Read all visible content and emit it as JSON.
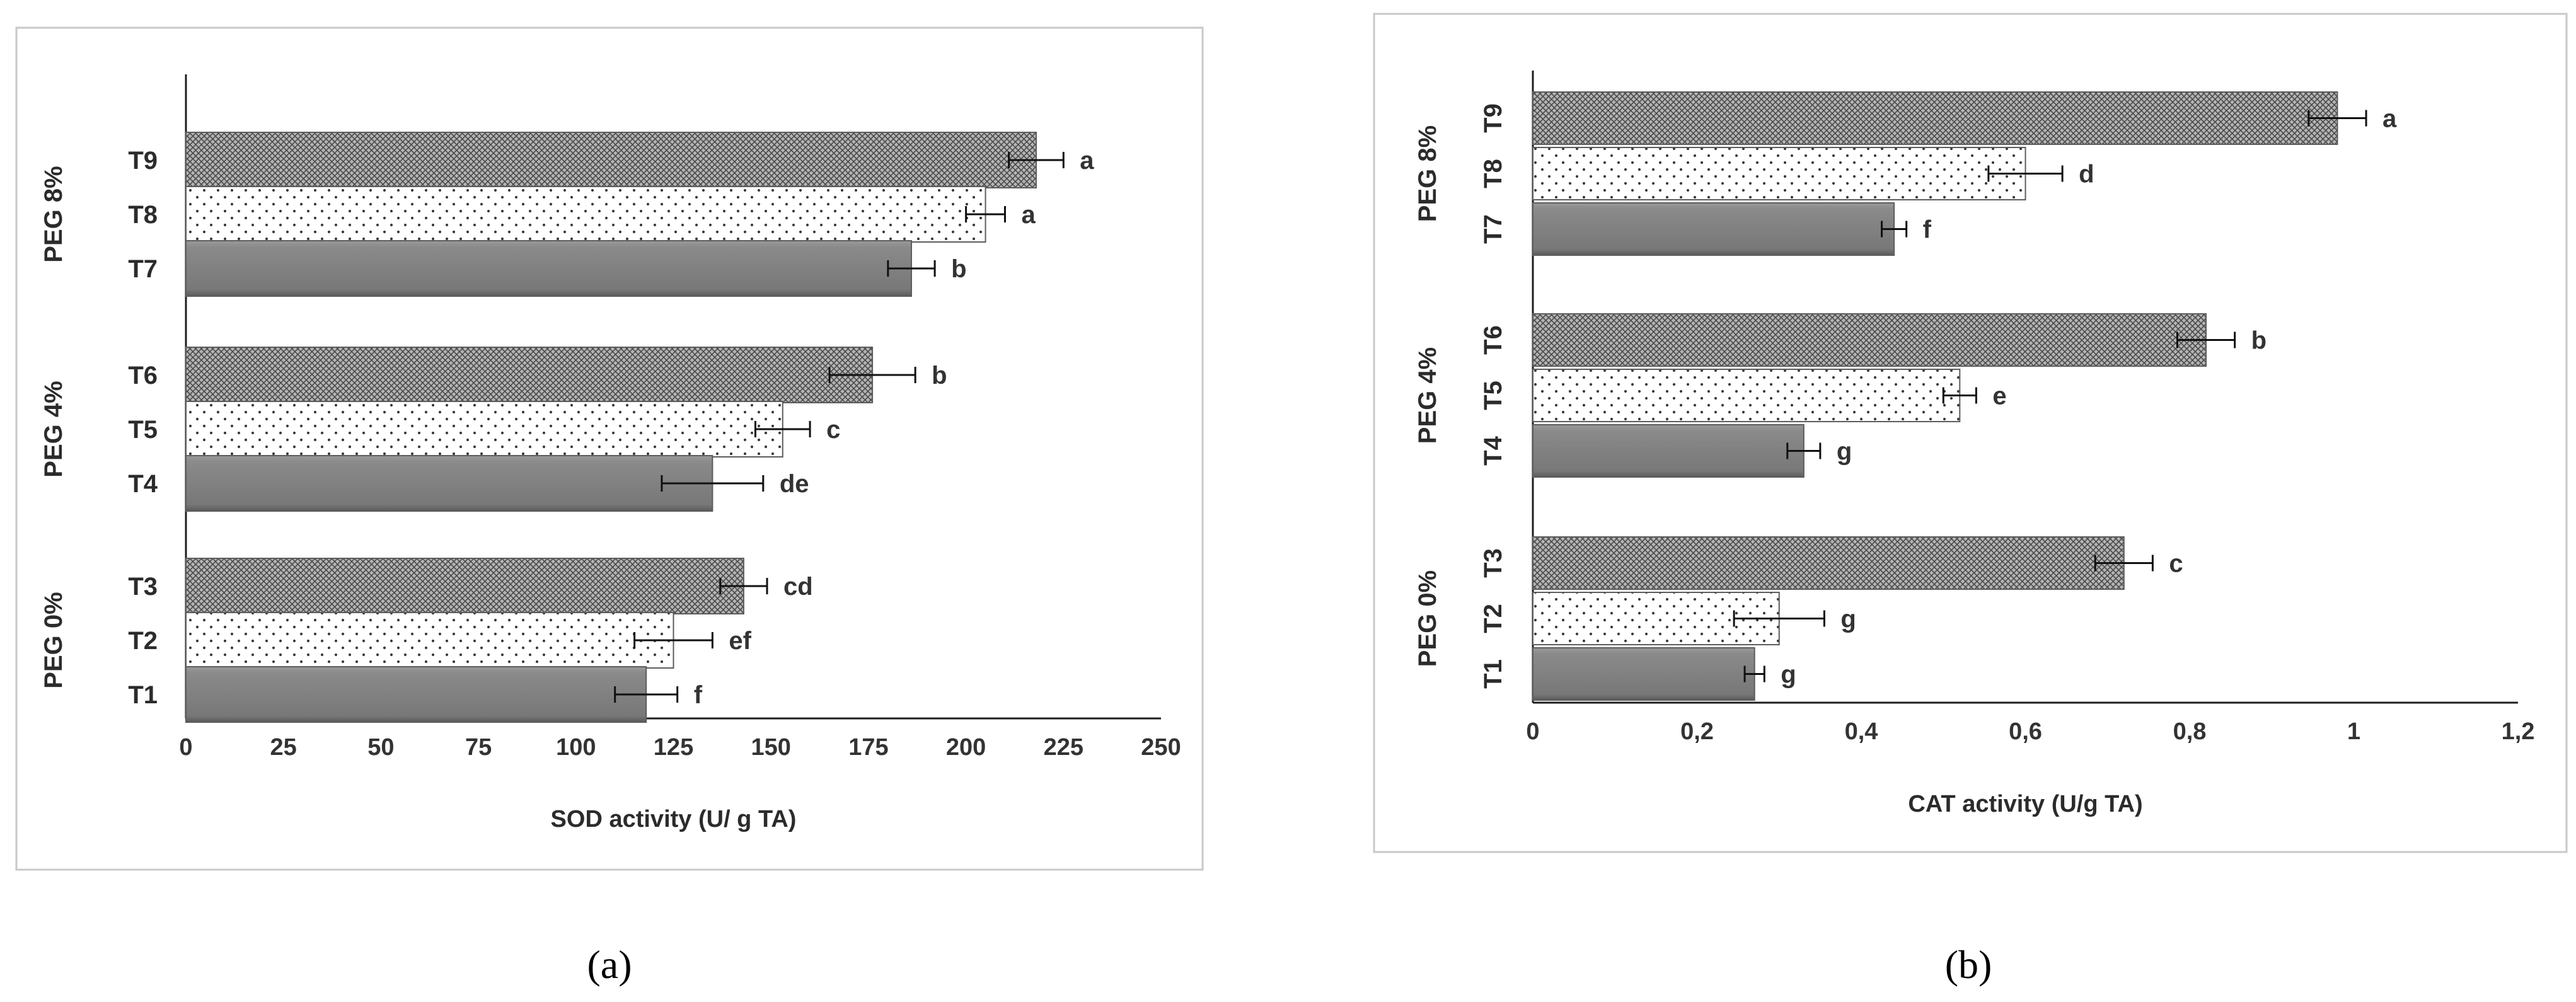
{
  "chart_data": [
    {
      "type": "bar",
      "orientation": "horizontal",
      "panel_label": "(a)",
      "xlabel": "SOD activity (U/ g TA)",
      "xlim": [
        0,
        250
      ],
      "xticks": [
        "0",
        "25",
        "50",
        "75",
        "100",
        "125",
        "150",
        "175",
        "200",
        "225",
        "250"
      ],
      "groups": [
        {
          "label": "PEG 8%",
          "bars": [
            {
              "label": "T9",
              "value": 218,
              "error": 7,
              "letter": "a",
              "pattern": "crosshatch"
            },
            {
              "label": "T8",
              "value": 205,
              "error": 5,
              "letter": "a",
              "pattern": "dots"
            },
            {
              "label": "T7",
              "value": 186,
              "error": 6,
              "letter": "b",
              "pattern": "solid"
            }
          ]
        },
        {
          "label": "PEG 4%",
          "bars": [
            {
              "label": "T6",
              "value": 176,
              "error": 11,
              "letter": "b",
              "pattern": "crosshatch"
            },
            {
              "label": "T5",
              "value": 153,
              "error": 7,
              "letter": "c",
              "pattern": "dots"
            },
            {
              "label": "T4",
              "value": 135,
              "error": 13,
              "letter": "de",
              "pattern": "solid"
            }
          ]
        },
        {
          "label": "PEG 0%",
          "bars": [
            {
              "label": "T3",
              "value": 143,
              "error": 6,
              "letter": "cd",
              "pattern": "crosshatch"
            },
            {
              "label": "T2",
              "value": 125,
              "error": 10,
              "letter": "ef",
              "pattern": "dots"
            },
            {
              "label": "T1",
              "value": 118,
              "error": 8,
              "letter": "f",
              "pattern": "solid"
            }
          ]
        }
      ]
    },
    {
      "type": "bar",
      "orientation": "horizontal",
      "panel_label": "(b)",
      "xlabel": "CAT activity (U/g TA)",
      "xlim": [
        0,
        1.2
      ],
      "xticks": [
        "0",
        "0,2",
        "0,4",
        "0,6",
        "0,8",
        "1",
        "1,2"
      ],
      "groups": [
        {
          "label": "PEG 8%",
          "bars": [
            {
              "label": "T9",
              "value": 0.98,
              "error": 0.035,
              "letter": "a",
              "pattern": "crosshatch"
            },
            {
              "label": "T8",
              "value": 0.6,
              "error": 0.045,
              "letter": "d",
              "pattern": "dots"
            },
            {
              "label": "T7",
              "value": 0.44,
              "error": 0.015,
              "letter": "f",
              "pattern": "solid"
            }
          ]
        },
        {
          "label": "PEG 4%",
          "bars": [
            {
              "label": "T6",
              "value": 0.82,
              "error": 0.035,
              "letter": "b",
              "pattern": "crosshatch"
            },
            {
              "label": "T5",
              "value": 0.52,
              "error": 0.02,
              "letter": "e",
              "pattern": "dots"
            },
            {
              "label": "T4",
              "value": 0.33,
              "error": 0.02,
              "letter": "g",
              "pattern": "solid"
            }
          ]
        },
        {
          "label": "PEG 0%",
          "bars": [
            {
              "label": "T3",
              "value": 0.72,
              "error": 0.035,
              "letter": "c",
              "pattern": "crosshatch"
            },
            {
              "label": "T2",
              "value": 0.3,
              "error": 0.055,
              "letter": "g",
              "pattern": "dots"
            },
            {
              "label": "T1",
              "value": 0.27,
              "error": 0.012,
              "letter": "g",
              "pattern": "solid"
            }
          ]
        }
      ]
    }
  ]
}
